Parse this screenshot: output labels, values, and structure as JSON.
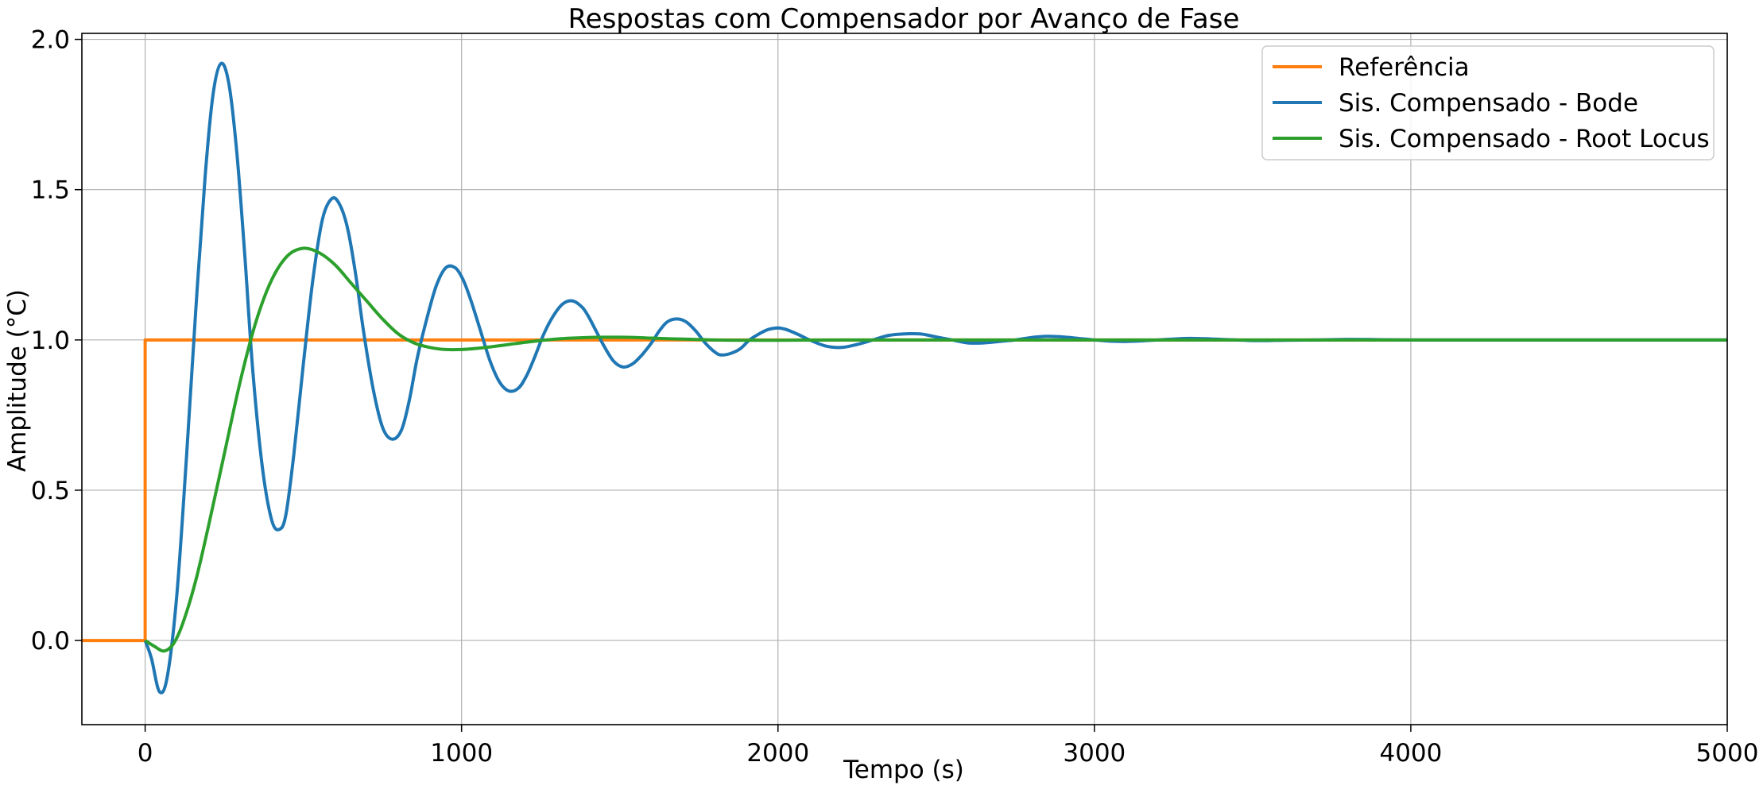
{
  "chart_data": {
    "type": "line",
    "title": "Respostas com Compensador por Avanço de Fase",
    "xlabel": "Tempo (s)",
    "ylabel": "Amplitude (°C)",
    "xlim": [
      -200,
      5000
    ],
    "ylim": [
      -0.28,
      2.02
    ],
    "xticks": [
      0,
      1000,
      2000,
      3000,
      4000,
      5000
    ],
    "xtick_labels": [
      "0",
      "1000",
      "2000",
      "3000",
      "4000",
      "5000"
    ],
    "yticks": [
      0.0,
      0.5,
      1.0,
      1.5,
      2.0
    ],
    "ytick_labels": [
      "0.0",
      "0.5",
      "1.0",
      "1.5",
      "2.0"
    ],
    "grid": true,
    "legend_position": "top-right",
    "series": [
      {
        "name": "Referência",
        "color": "#ff7f0e",
        "x": [
          -200,
          0,
          0,
          5000
        ],
        "y": [
          0,
          0,
          1,
          1
        ]
      },
      {
        "name": "Sis. Compensado - Bode",
        "color": "#1f77b4",
        "x": [
          0,
          20,
          45,
          70,
          100,
          130,
          160,
          190,
          215,
          240,
          265,
          290,
          315,
          340,
          370,
          400,
          425,
          445,
          470,
          500,
          530,
          560,
          590,
          615,
          640,
          665,
          690,
          720,
          750,
          780,
          810,
          835,
          860,
          890,
          920,
          950,
          980,
          1005,
          1030,
          1060,
          1090,
          1120,
          1150,
          1180,
          1205,
          1230,
          1260,
          1290,
          1320,
          1350,
          1380,
          1400,
          1425,
          1450,
          1480,
          1510,
          1540,
          1570,
          1600,
          1625,
          1650,
          1680,
          1710,
          1740,
          1770,
          1800,
          1820,
          1850,
          1880,
          1910,
          1940,
          1970,
          2000,
          2025,
          2060,
          2100,
          2150,
          2200,
          2250,
          2300,
          2350,
          2400,
          2450,
          2500,
          2550,
          2600,
          2650,
          2700,
          2750,
          2800,
          2850,
          2900,
          2950,
          3000,
          3050,
          3100,
          3150,
          3200,
          3250,
          3300,
          3350,
          3400,
          3450,
          3500,
          3550,
          3600,
          3700,
          3800,
          3900,
          4000,
          4200,
          4400,
          4600,
          4800,
          5000
        ],
        "y": [
          0,
          -0.06,
          -0.17,
          -0.12,
          0.15,
          0.6,
          1.1,
          1.55,
          1.82,
          1.92,
          1.85,
          1.62,
          1.28,
          0.9,
          0.58,
          0.4,
          0.37,
          0.42,
          0.62,
          0.92,
          1.2,
          1.4,
          1.47,
          1.45,
          1.37,
          1.22,
          1.03,
          0.84,
          0.71,
          0.67,
          0.7,
          0.8,
          0.94,
          1.07,
          1.18,
          1.24,
          1.24,
          1.2,
          1.13,
          1.03,
          0.93,
          0.86,
          0.83,
          0.84,
          0.88,
          0.94,
          1.02,
          1.08,
          1.12,
          1.13,
          1.11,
          1.08,
          1.03,
          0.98,
          0.93,
          0.91,
          0.92,
          0.95,
          0.99,
          1.03,
          1.06,
          1.07,
          1.06,
          1.03,
          0.99,
          0.96,
          0.95,
          0.955,
          0.97,
          1.0,
          1.02,
          1.035,
          1.04,
          1.035,
          1.02,
          1.0,
          0.98,
          0.975,
          0.985,
          1.0,
          1.015,
          1.02,
          1.02,
          1.01,
          1.0,
          0.99,
          0.99,
          0.995,
          1.0,
          1.008,
          1.012,
          1.01,
          1.005,
          1.0,
          0.996,
          0.995,
          0.997,
          1.0,
          1.003,
          1.005,
          1.004,
          1.002,
          1.0,
          0.998,
          0.998,
          0.999,
          1.0,
          1.002,
          1.001,
          1.0,
          1.0,
          1.0,
          1.0,
          1.0,
          1.0
        ]
      },
      {
        "name": "Sis. Compensado - Root Locus",
        "color": "#2ca02c",
        "x": [
          0,
          30,
          60,
          90,
          120,
          160,
          200,
          250,
          300,
          350,
          400,
          450,
          500,
          550,
          600,
          650,
          700,
          750,
          800,
          850,
          900,
          950,
          1000,
          1050,
          1100,
          1150,
          1200,
          1250,
          1300,
          1350,
          1400,
          1450,
          1500,
          1550,
          1600,
          1650,
          1700,
          1800,
          1900,
          2000,
          2200,
          2500,
          3000,
          3500,
          4000,
          4500,
          5000
        ],
        "y": [
          0,
          -0.02,
          -0.035,
          -0.01,
          0.06,
          0.2,
          0.38,
          0.62,
          0.86,
          1.06,
          1.2,
          1.28,
          1.305,
          1.29,
          1.25,
          1.19,
          1.13,
          1.07,
          1.02,
          0.99,
          0.975,
          0.968,
          0.968,
          0.972,
          0.978,
          0.985,
          0.992,
          0.998,
          1.003,
          1.006,
          1.008,
          1.009,
          1.009,
          1.008,
          1.006,
          1.004,
          1.003,
          1.0,
          0.999,
          0.999,
          1.0,
          1.0,
          1.0,
          1.0,
          1.0,
          1.0,
          1.0
        ]
      }
    ]
  }
}
